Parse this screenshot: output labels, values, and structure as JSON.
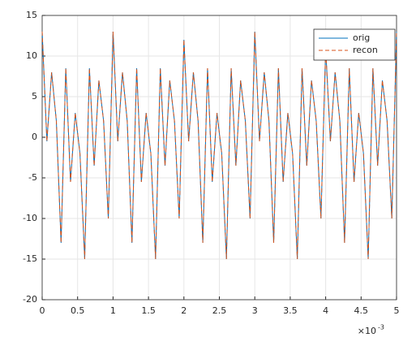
{
  "chart_data": {
    "type": "line",
    "x_exponent_label": "×10",
    "x_exponent_power": "-3",
    "x": [
      0,
      0.0667,
      0.1333,
      0.2,
      0.2667,
      0.3333,
      0.4,
      0.4667,
      0.5333,
      0.6,
      0.6667,
      0.7333,
      0.8,
      0.8667,
      0.9333,
      1,
      1.0667,
      1.1333,
      1.2,
      1.2667,
      1.3333,
      1.4,
      1.4667,
      1.5333,
      1.6,
      1.6667,
      1.7333,
      1.8,
      1.8667,
      1.9333,
      2,
      2.0667,
      2.1333,
      2.2,
      2.2667,
      2.3333,
      2.4,
      2.4667,
      2.5333,
      2.6,
      2.6667,
      2.7333,
      2.8,
      2.8667,
      2.9333,
      3,
      3.0667,
      3.1333,
      3.2,
      3.2667,
      3.3333,
      3.4,
      3.4667,
      3.5333,
      3.6,
      3.6667,
      3.7333,
      3.8,
      3.8667,
      3.9333,
      4,
      4.0667,
      4.1333,
      4.2,
      4.2667,
      4.3333,
      4.4,
      4.4667,
      4.5333,
      4.6,
      4.6667,
      4.7333,
      4.8,
      4.8667,
      4.9333,
      5
    ],
    "series": [
      {
        "name": "orig",
        "color": "#0072bd",
        "dash": false,
        "values": [
          13,
          -0.5,
          8,
          2,
          -13,
          8.5,
          -5.5,
          3,
          -2,
          -15,
          8.5,
          -3.5,
          7,
          2,
          -10,
          13,
          -0.5,
          8,
          2,
          -13,
          8.5,
          -5.5,
          3,
          -2,
          -15,
          8.5,
          -3.5,
          7,
          2,
          -10,
          12,
          -0.5,
          8,
          2,
          -13,
          8.5,
          -5.5,
          3,
          -2,
          -15,
          8.5,
          -3.5,
          7,
          2,
          -10,
          13,
          -0.5,
          8,
          2,
          -13,
          8.5,
          -5.5,
          3,
          -2,
          -15,
          8.5,
          -3.5,
          7,
          2,
          -10,
          11,
          -0.5,
          8,
          2,
          -13,
          8.5,
          -5.5,
          3,
          -2,
          -15,
          8.5,
          -3.5,
          7,
          2,
          -10,
          13
        ]
      },
      {
        "name": "recon",
        "color": "#d95319",
        "dash": true,
        "values": [
          13,
          -0.5,
          8,
          2,
          -13,
          8.5,
          -5.5,
          3,
          -2,
          -15,
          8.5,
          -3.5,
          7,
          2,
          -10,
          13,
          -0.5,
          8,
          2,
          -13,
          8.5,
          -5.5,
          3,
          -2,
          -15,
          8.5,
          -3.5,
          7,
          2,
          -10,
          12,
          -0.5,
          8,
          2,
          -13,
          8.5,
          -5.5,
          3,
          -2,
          -15,
          8.5,
          -3.5,
          7,
          2,
          -10,
          13,
          -0.5,
          8,
          2,
          -13,
          8.5,
          -5.5,
          3,
          -2,
          -15,
          8.5,
          -3.5,
          7,
          2,
          -10,
          11,
          -0.5,
          8,
          2,
          -13,
          8.5,
          -5.5,
          3,
          -2,
          -15,
          8.5,
          -3.5,
          7,
          2,
          -10,
          13
        ]
      }
    ],
    "xlim": [
      0,
      5
    ],
    "xticks": [
      0,
      0.5,
      1,
      1.5,
      2,
      2.5,
      3,
      3.5,
      4,
      4.5,
      5
    ],
    "ylim": [
      -20,
      15
    ],
    "yticks": [
      -20,
      -15,
      -10,
      -5,
      0,
      5,
      10,
      15
    ],
    "grid": true,
    "legend": "northeast"
  }
}
